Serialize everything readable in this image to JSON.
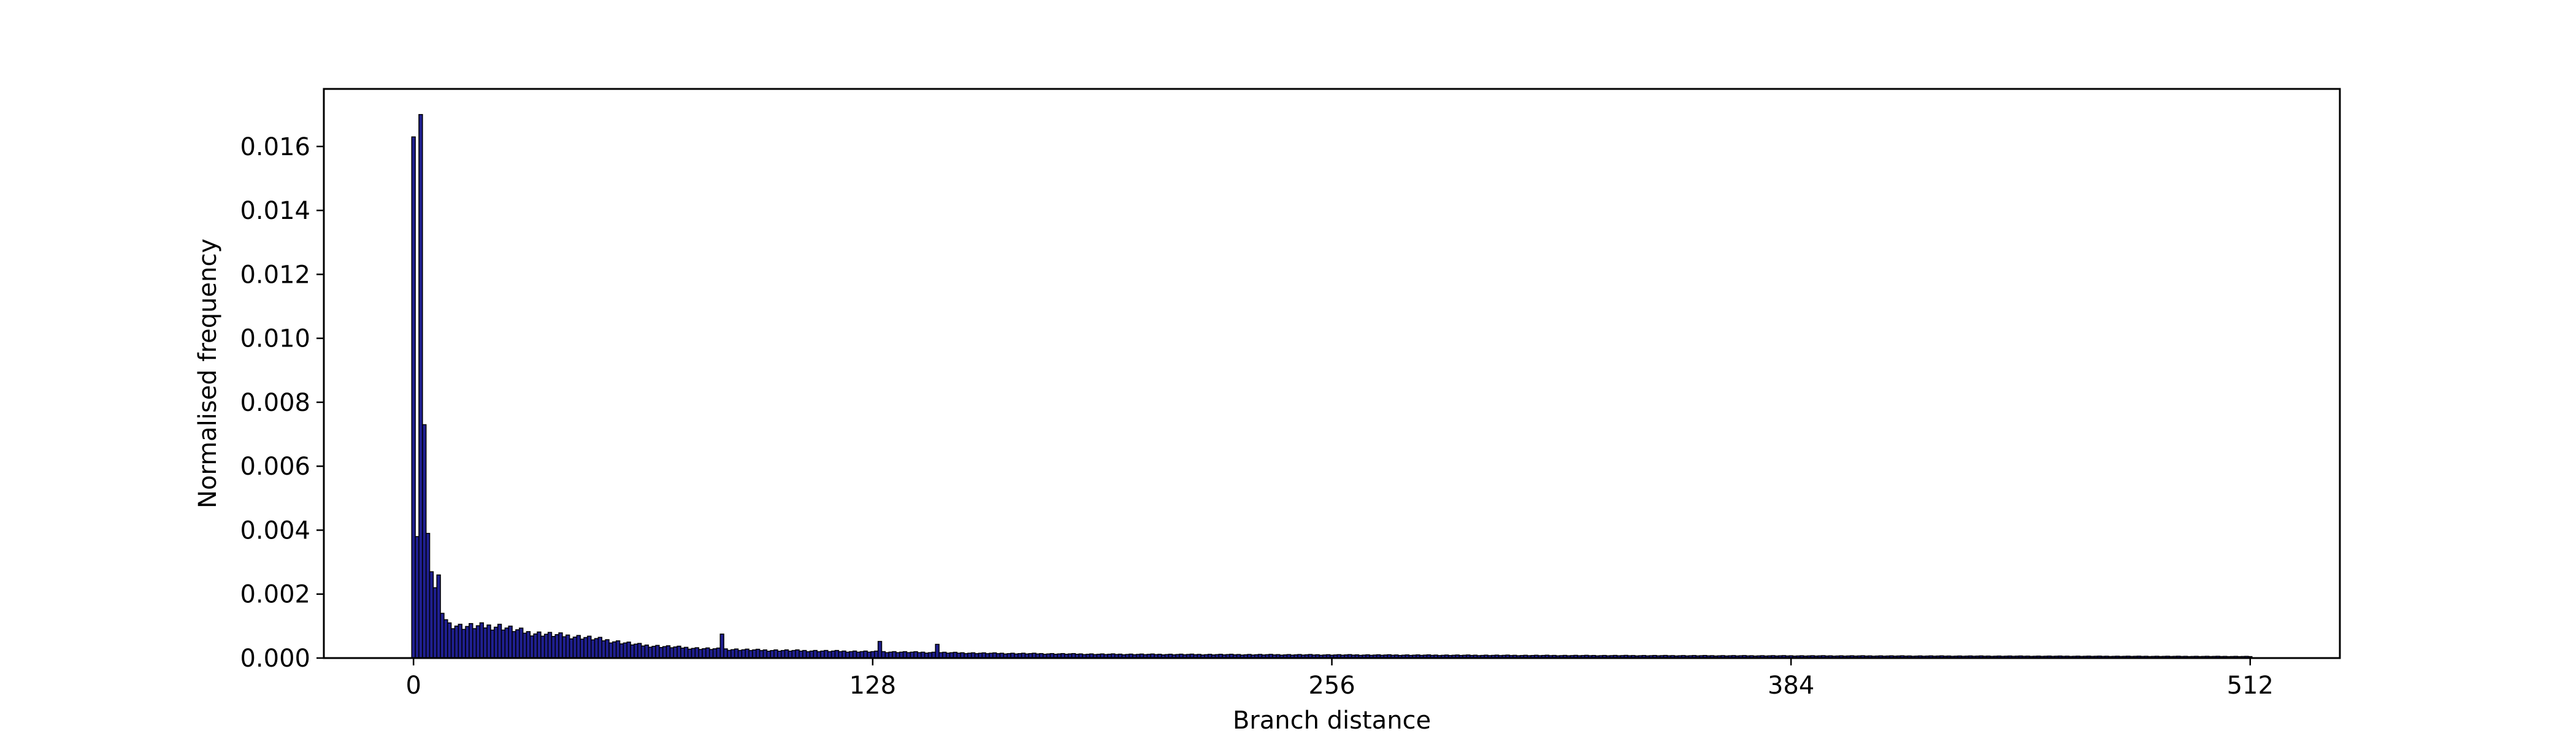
{
  "chart_data": {
    "type": "bar",
    "title": "",
    "xlabel": "Branch distance",
    "ylabel": "Normalised frequency",
    "xlim": [
      -25,
      537
    ],
    "ylim": [
      0,
      0.0178
    ],
    "xticks": [
      0,
      128,
      256,
      384,
      512
    ],
    "yticks": [
      0,
      0.002,
      0.004,
      0.006,
      0.008,
      0.01,
      0.012,
      0.014,
      0.016
    ],
    "ytick_labels": [
      "0.000",
      "0.002",
      "0.004",
      "0.006",
      "0.008",
      "0.010",
      "0.012",
      "0.014",
      "0.016"
    ],
    "grid": false,
    "legend": "none",
    "bar_color": "#1f1f8f",
    "edge_color": "#000000",
    "bin_width": 1,
    "peaks": [
      {
        "x": 0,
        "y": 0.0163
      },
      {
        "x": 1,
        "y": 0.0038
      },
      {
        "x": 2,
        "y": 0.017
      },
      {
        "x": 3,
        "y": 0.0073
      },
      {
        "x": 4,
        "y": 0.0039
      },
      {
        "x": 5,
        "y": 0.0027
      },
      {
        "x": 6,
        "y": 0.0022
      },
      {
        "x": 7,
        "y": 0.0026
      },
      {
        "x": 8,
        "y": 0.0014
      },
      {
        "x": 9,
        "y": 0.0012
      },
      {
        "x": 10,
        "y": 0.0011
      },
      {
        "x": 12,
        "y": 0.001
      },
      {
        "x": 16,
        "y": 0.001
      },
      {
        "x": 24,
        "y": 0.001
      },
      {
        "x": 32,
        "y": 0.0008
      },
      {
        "x": 48,
        "y": 0.00065
      },
      {
        "x": 64,
        "y": 0.0004
      },
      {
        "x": 80,
        "y": 0.0003
      },
      {
        "x": 96,
        "y": 0.00025
      },
      {
        "x": 128,
        "y": 0.0002
      },
      {
        "x": 160,
        "y": 0.00015
      },
      {
        "x": 192,
        "y": 0.00012
      },
      {
        "x": 256,
        "y": 0.0001
      },
      {
        "x": 320,
        "y": 8e-05
      },
      {
        "x": 384,
        "y": 7e-05
      },
      {
        "x": 448,
        "y": 6e-05
      },
      {
        "x": 512,
        "y": 5e-05
      }
    ],
    "spikes": [
      {
        "x": 86,
        "y": 0.00075
      },
      {
        "x": 130,
        "y": 0.00052
      },
      {
        "x": 146,
        "y": 0.00043
      }
    ]
  }
}
